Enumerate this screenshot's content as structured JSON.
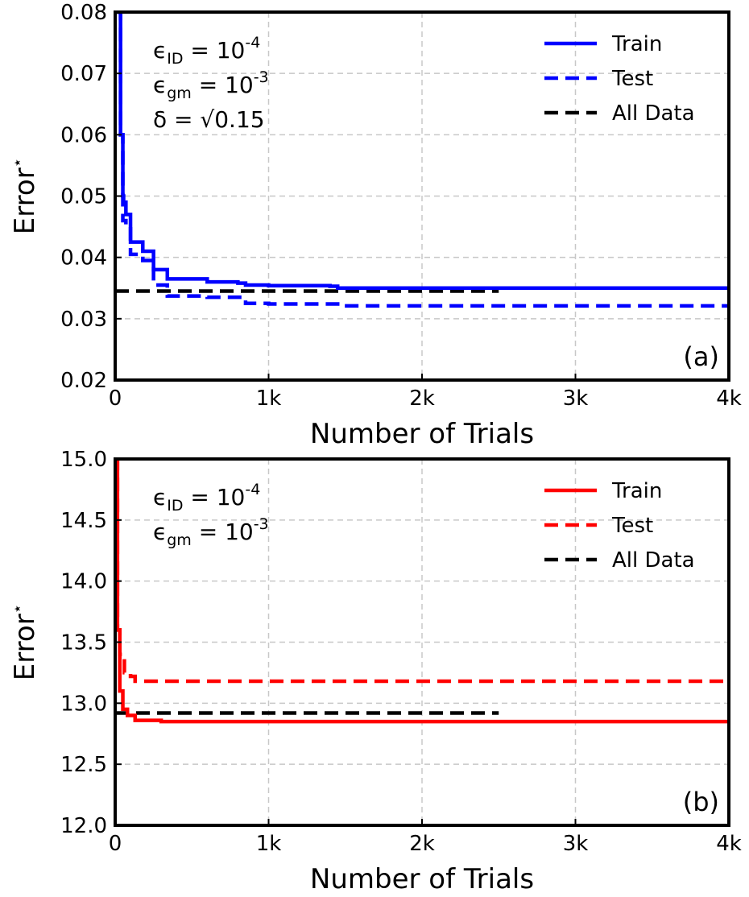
{
  "chart_data": [
    {
      "type": "line",
      "panel_label": "(a)",
      "xlabel": "Number of Trials",
      "ylabel": "Error",
      "ylabel_superscript": "⋆",
      "xlim": [
        0,
        4000
      ],
      "ylim": [
        0.02,
        0.08
      ],
      "xticks": [
        0,
        1000,
        2000,
        3000,
        4000
      ],
      "xtick_labels": [
        "0",
        "1k",
        "2k",
        "3k",
        "4k"
      ],
      "yticks": [
        0.02,
        0.03,
        0.04,
        0.05,
        0.06,
        0.07,
        0.08
      ],
      "ytick_labels": [
        "0.02",
        "0.03",
        "0.04",
        "0.05",
        "0.06",
        "0.07",
        "0.08"
      ],
      "grid": true,
      "legend_position": "top-right",
      "annotations": [
        {
          "symbol": "ϵ",
          "sub": "ID",
          "eq": " = 10",
          "sup": "-4"
        },
        {
          "symbol": "ϵ",
          "sub": "gm",
          "eq": " = 10",
          "sup": "-3"
        },
        {
          "symbol": "δ",
          "sub": "",
          "eq": " = √0.15",
          "sup": ""
        }
      ],
      "series": [
        {
          "name": "Train",
          "color": "#0000ff",
          "style": "solid",
          "step": true,
          "x": [
            0,
            35,
            50,
            55,
            70,
            100,
            180,
            250,
            340,
            600,
            800,
            850,
            1000,
            1400,
            1450,
            4000
          ],
          "y": [
            0.08,
            0.06,
            0.05,
            0.049,
            0.047,
            0.0425,
            0.041,
            0.038,
            0.0365,
            0.036,
            0.0358,
            0.0355,
            0.0354,
            0.0353,
            0.035,
            0.0349
          ]
        },
        {
          "name": "Test",
          "color": "#0000ff",
          "style": "dashed",
          "step": true,
          "x": [
            0,
            35,
            50,
            70,
            100,
            180,
            250,
            340,
            600,
            850,
            1000,
            1450,
            4000
          ],
          "y": [
            0.08,
            0.06,
            0.046,
            0.045,
            0.0405,
            0.0395,
            0.0355,
            0.0337,
            0.0335,
            0.0325,
            0.0324,
            0.0321,
            0.032
          ]
        },
        {
          "name": "All Data",
          "color": "#000000",
          "style": "dashed",
          "step": false,
          "x": [
            0,
            2500
          ],
          "y": [
            0.0345,
            0.0345
          ]
        }
      ]
    },
    {
      "type": "line",
      "panel_label": "(b)",
      "xlabel": "Number of Trials",
      "ylabel": "Error",
      "ylabel_superscript": "⋆",
      "xlim": [
        0,
        4000
      ],
      "ylim": [
        12.0,
        15.0
      ],
      "xticks": [
        0,
        1000,
        2000,
        3000,
        4000
      ],
      "xtick_labels": [
        "0",
        "1k",
        "2k",
        "3k",
        "4k"
      ],
      "yticks": [
        12.0,
        12.5,
        13.0,
        13.5,
        14.0,
        14.5,
        15.0
      ],
      "ytick_labels": [
        "12.0",
        "12.5",
        "13.0",
        "13.5",
        "14.0",
        "14.5",
        "15.0"
      ],
      "grid": true,
      "legend_position": "top-right",
      "annotations": [
        {
          "symbol": "ϵ",
          "sub": "ID",
          "eq": " = 10",
          "sup": "-4"
        },
        {
          "symbol": "ϵ",
          "sub": "gm",
          "eq": " = 10",
          "sup": "-3"
        }
      ],
      "series": [
        {
          "name": "Train",
          "color": "#ff0000",
          "style": "solid",
          "step": true,
          "x": [
            0,
            15,
            30,
            50,
            80,
            130,
            300,
            1000,
            4000
          ],
          "y": [
            15.0,
            13.6,
            13.1,
            12.95,
            12.9,
            12.86,
            12.85,
            12.85,
            12.85
          ]
        },
        {
          "name": "Test",
          "color": "#ff0000",
          "style": "dashed",
          "step": true,
          "x": [
            0,
            15,
            30,
            60,
            100,
            130,
            4000
          ],
          "y": [
            15.0,
            13.6,
            13.4,
            13.25,
            13.22,
            13.18,
            13.17
          ]
        },
        {
          "name": "All Data",
          "color": "#000000",
          "style": "dashed",
          "step": false,
          "x": [
            0,
            2500
          ],
          "y": [
            12.92,
            12.92
          ]
        }
      ]
    }
  ]
}
